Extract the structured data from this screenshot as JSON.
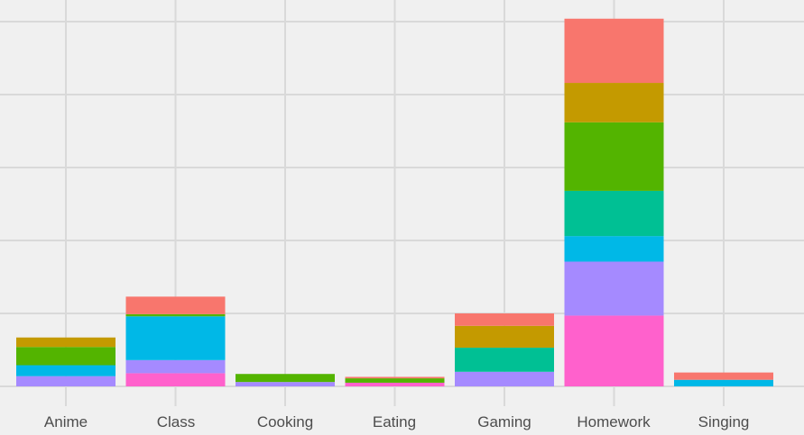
{
  "chart_data": {
    "type": "bar",
    "stacked": true,
    "categories": [
      "Anime",
      "Class",
      "Cooking",
      "Eating",
      "Gaming",
      "Homework",
      "Singing"
    ],
    "ylim": [
      0,
      5.3
    ],
    "y_gridlines": [
      0,
      1,
      2,
      3,
      4,
      5
    ],
    "y_tick_labels_visible": false,
    "grid": true,
    "legend": "none",
    "background": "#f0f0f0",
    "gridline_color": "#d9d9d9",
    "series": [
      {
        "color": "#ff61cc",
        "values": [
          0,
          0.18,
          0,
          0.05,
          0,
          0.97,
          0
        ]
      },
      {
        "color": "#a58aff",
        "values": [
          0.14,
          0.18,
          0.06,
          0,
          0.2,
          0.74,
          0
        ]
      },
      {
        "color": "#00b8e7",
        "values": [
          0.15,
          0.6,
          0,
          0,
          0,
          0.35,
          0.09
        ]
      },
      {
        "color": "#00c094",
        "values": [
          0,
          0,
          0,
          0,
          0.33,
          0.62,
          0
        ]
      },
      {
        "color": "#53b400",
        "values": [
          0.25,
          0.03,
          0.11,
          0.06,
          0,
          0.94,
          0
        ]
      },
      {
        "color": "#c49a00",
        "values": [
          0.13,
          0,
          0,
          0,
          0.3,
          0.54,
          0
        ]
      },
      {
        "color": "#f8766d",
        "values": [
          0,
          0.24,
          0,
          0.02,
          0.17,
          0.88,
          0.1
        ]
      }
    ]
  }
}
